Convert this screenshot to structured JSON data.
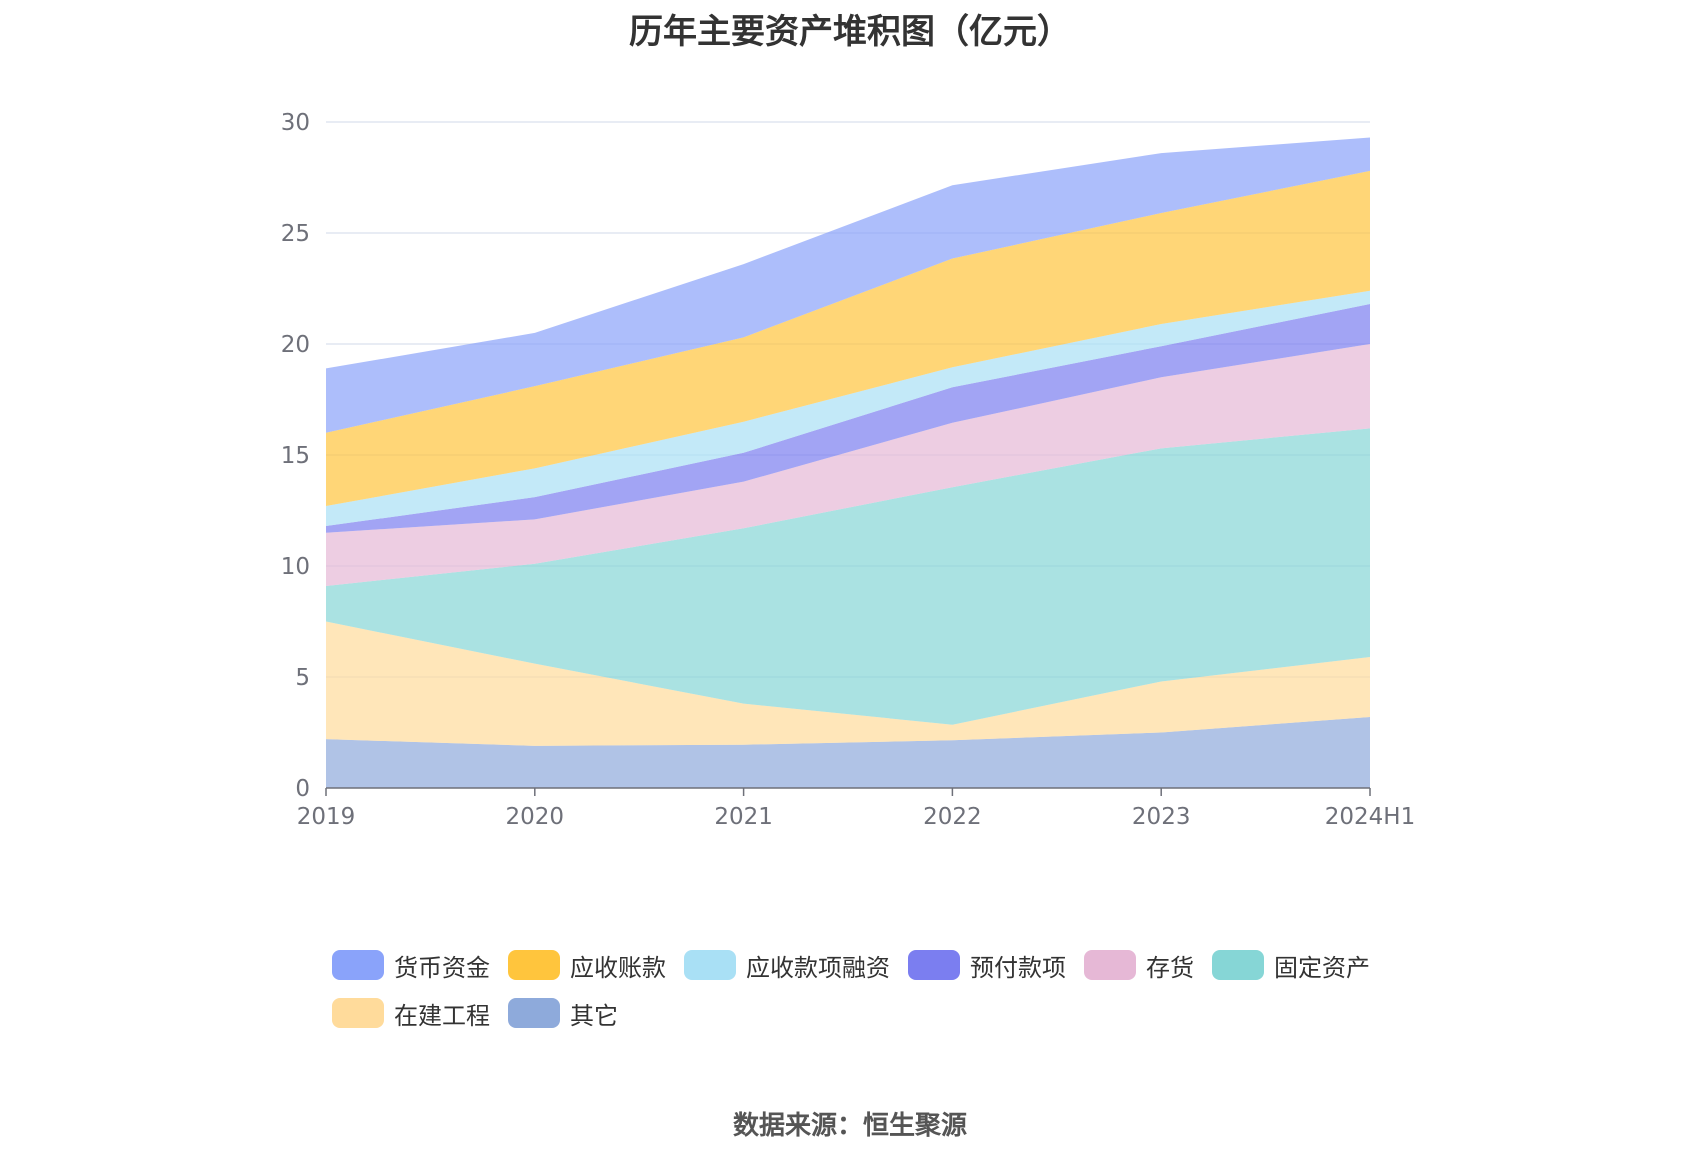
{
  "chart_data": {
    "type": "area",
    "stacked": true,
    "title": "历年主要资产堆积图（亿元）",
    "xlabel": "",
    "ylabel": "",
    "categories": [
      "2019",
      "2020",
      "2021",
      "2022",
      "2023",
      "2024H1"
    ],
    "ylim": [
      0,
      30
    ],
    "yticks": [
      0,
      5,
      10,
      15,
      20,
      25,
      30
    ],
    "grid": true,
    "legend_position": "bottom",
    "series": [
      {
        "name": "其它",
        "color": "#8eaadb",
        "values": [
          2.2,
          1.9,
          1.95,
          2.15,
          2.5,
          3.2
        ]
      },
      {
        "name": "在建工程",
        "color": "#ffdb9b",
        "values": [
          5.3,
          3.7,
          1.85,
          0.7,
          2.3,
          2.7
        ]
      },
      {
        "name": "固定资产",
        "color": "#86d6d6",
        "values": [
          1.6,
          4.5,
          7.9,
          10.7,
          10.5,
          10.3
        ]
      },
      {
        "name": "存货",
        "color": "#e6b8d6",
        "values": [
          2.4,
          2.0,
          2.1,
          2.9,
          3.2,
          3.8
        ]
      },
      {
        "name": "预付款项",
        "color": "#7b7ef0",
        "values": [
          0.3,
          1.0,
          1.3,
          1.6,
          1.4,
          1.8
        ]
      },
      {
        "name": "应收款项融资",
        "color": "#a9e0f5",
        "values": [
          0.9,
          1.3,
          1.4,
          0.9,
          1.0,
          0.6
        ]
      },
      {
        "name": "应收账款",
        "color": "#ffc53d",
        "values": [
          3.3,
          3.7,
          3.8,
          4.9,
          5.0,
          5.4
        ]
      },
      {
        "name": "货币资金",
        "color": "#8aa3fa",
        "values": [
          2.9,
          2.4,
          3.3,
          3.3,
          2.7,
          1.5
        ]
      }
    ]
  },
  "legend_order": [
    "货币资金",
    "应收账款",
    "应收款项融资",
    "预付款项",
    "存货",
    "固定资产",
    "在建工程",
    "其它"
  ],
  "source_note": "数据来源：恒生聚源"
}
